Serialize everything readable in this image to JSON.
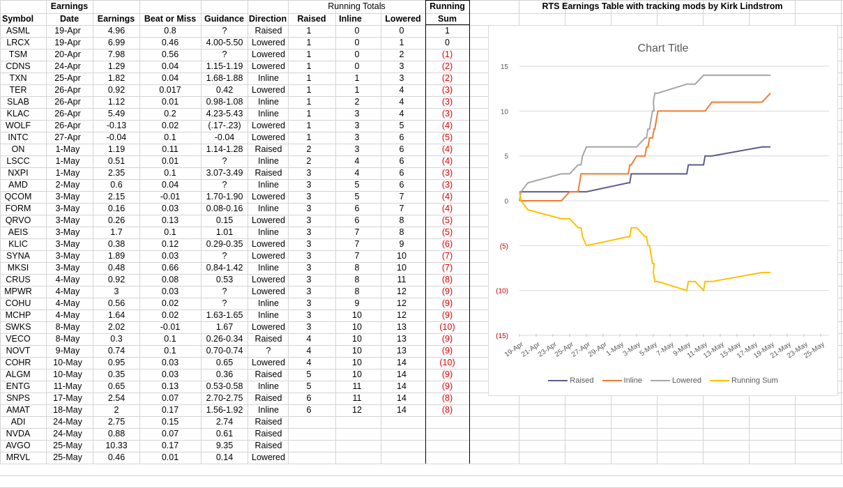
{
  "sheet_title": "RTS Earnings Table with tracking mods by Kirk Lindstrom",
  "headers": {
    "row1": {
      "earnings": "Earnings",
      "running_totals": "Running Totals",
      "running": "Running"
    },
    "row2": {
      "symbol": "Symbol",
      "date": "Date",
      "earnings": "Earnings",
      "beat": "Beat or Miss",
      "guidance": "Guidance",
      "direction": "Direction",
      "raised": "Raised",
      "inline": "Inline",
      "lowered": "Lowered",
      "sum": "Sum"
    }
  },
  "rows": [
    [
      "ASML",
      "19-Apr",
      "4.96",
      "0.8",
      "?",
      "Raised",
      "1",
      "0",
      "0",
      "1"
    ],
    [
      "LRCX",
      "19-Apr",
      "6.99",
      "0.46",
      "4.00-5.50",
      "Lowered",
      "1",
      "0",
      "1",
      "0"
    ],
    [
      "TSM",
      "20-Apr",
      "7.98",
      "0.56",
      "?",
      "Lowered",
      "1",
      "0",
      "2",
      "(1)"
    ],
    [
      "CDNS",
      "24-Apr",
      "1.29",
      "0.04",
      "1.15-1.19",
      "Lowered",
      "1",
      "0",
      "3",
      "(2)"
    ],
    [
      "TXN",
      "25-Apr",
      "1.82",
      "0.04",
      "1.68-1.88",
      "Inline",
      "1",
      "1",
      "3",
      "(2)"
    ],
    [
      "TER",
      "26-Apr",
      "0.92",
      "0.017",
      "0.42",
      "Lowered",
      "1",
      "1",
      "4",
      "(3)"
    ],
    [
      "SLAB",
      "26-Apr",
      "1.12",
      "0.01",
      "0.98-1.08",
      "Inline",
      "1",
      "2",
      "4",
      "(3)"
    ],
    [
      "KLAC",
      "26-Apr",
      "5.49",
      "0.2",
      "4.23-5.43",
      "Inline",
      "1",
      "3",
      "4",
      "(3)"
    ],
    [
      "WOLF",
      "26-Apr",
      "-0.13",
      "0.02",
      "(.17-.23)",
      "Lowered",
      "1",
      "3",
      "5",
      "(4)"
    ],
    [
      "INTC",
      "27-Apr",
      "-0.04",
      "0.1",
      "-0.04",
      "Lowered",
      "1",
      "3",
      "6",
      "(5)"
    ],
    [
      "ON",
      "1-May",
      "1.19",
      "0.11",
      "1.14-1.28",
      "Raised",
      "2",
      "3",
      "6",
      "(4)"
    ],
    [
      "LSCC",
      "1-May",
      "0.51",
      "0.01",
      "?",
      "Inline",
      "2",
      "4",
      "6",
      "(4)"
    ],
    [
      "NXPI",
      "1-May",
      "2.35",
      "0.1",
      "3.07-3.49",
      "Raised",
      "3",
      "4",
      "6",
      "(3)"
    ],
    [
      "AMD",
      "2-May",
      "0.6",
      "0.04",
      "?",
      "Inline",
      "3",
      "5",
      "6",
      "(3)"
    ],
    [
      "QCOM",
      "3-May",
      "2.15",
      "-0.01",
      "1.70-1.90",
      "Lowered",
      "3",
      "5",
      "7",
      "(4)"
    ],
    [
      "FORM",
      "3-May",
      "0.16",
      "0.03",
      "0.08-0.16",
      "Inline",
      "3",
      "6",
      "7",
      "(4)"
    ],
    [
      "QRVO",
      "3-May",
      "0.26",
      "0.13",
      "0.15",
      "Lowered",
      "3",
      "6",
      "8",
      "(5)"
    ],
    [
      "AEIS",
      "3-May",
      "1.7",
      "0.1",
      "1.01",
      "Inline",
      "3",
      "7",
      "8",
      "(5)"
    ],
    [
      "KLIC",
      "3-May",
      "0.38",
      "0.12",
      "0.29-0.35",
      "Lowered",
      "3",
      "7",
      "9",
      "(6)"
    ],
    [
      "SYNA",
      "3-May",
      "1.89",
      "0.03",
      "?",
      "Lowered",
      "3",
      "7",
      "10",
      "(7)"
    ],
    [
      "MKSI",
      "3-May",
      "0.48",
      "0.66",
      "0.84-1.42",
      "Inline",
      "3",
      "8",
      "10",
      "(7)"
    ],
    [
      "CRUS",
      "4-May",
      "0.92",
      "0.08",
      "0.53",
      "Lowered",
      "3",
      "8",
      "11",
      "(8)"
    ],
    [
      "MPWR",
      "4-May",
      "3",
      "0.03",
      "?",
      "Lowered",
      "3",
      "8",
      "12",
      "(9)"
    ],
    [
      "COHU",
      "4-May",
      "0.56",
      "0.02",
      "?",
      "Inline",
      "3",
      "9",
      "12",
      "(9)"
    ],
    [
      "MCHP",
      "4-May",
      "1.64",
      "0.02",
      "1.63-1.65",
      "Inline",
      "3",
      "10",
      "12",
      "(9)"
    ],
    [
      "SWKS",
      "8-May",
      "2.02",
      "-0.01",
      "1.67",
      "Lowered",
      "3",
      "10",
      "13",
      "(10)"
    ],
    [
      "VECO",
      "8-May",
      "0.3",
      "0.1",
      "0.26-0.34",
      "Raised",
      "4",
      "10",
      "13",
      "(9)"
    ],
    [
      "NOVT",
      "9-May",
      "0.74",
      "0.1",
      "0.70-0.74",
      "?",
      "4",
      "10",
      "13",
      "(9)"
    ],
    [
      "COHR",
      "10-May",
      "0.95",
      "0.03",
      "0.65",
      "Lowered",
      "4",
      "10",
      "14",
      "(10)"
    ],
    [
      "ALGM",
      "10-May",
      "0.35",
      "0.03",
      "0.36",
      "Raised",
      "5",
      "10",
      "14",
      "(9)"
    ],
    [
      "ENTG",
      "11-May",
      "0.65",
      "0.13",
      "0.53-0.58",
      "Inline",
      "5",
      "11",
      "14",
      "(9)"
    ],
    [
      "SNPS",
      "17-May",
      "2.54",
      "0.07",
      "2.70-2.75",
      "Raised",
      "6",
      "11",
      "14",
      "(8)"
    ],
    [
      "AMAT",
      "18-May",
      "2",
      "0.17",
      "1.56-1.92",
      "Inline",
      "6",
      "12",
      "14",
      "(8)"
    ],
    [
      "ADI",
      "24-May",
      "2.75",
      "0.15",
      "2.74",
      "Raised",
      "",
      "",
      "",
      ""
    ],
    [
      "NVDA",
      "24-May",
      "0.88",
      "0.07",
      "0.61",
      "Raised",
      "",
      "",
      "",
      ""
    ],
    [
      "AVGO",
      "25-May",
      "10.33",
      "0.17",
      "9.35",
      "Raised",
      "",
      "",
      "",
      ""
    ],
    [
      "MRVL",
      "25-May",
      "0.46",
      "0.01",
      "0.14",
      "Lowered",
      "",
      "",
      "",
      ""
    ]
  ],
  "chart_data": {
    "type": "line",
    "title": "Chart Title",
    "x": [
      "19-Apr",
      "19-Apr",
      "20-Apr",
      "24-Apr",
      "25-Apr",
      "26-Apr",
      "26-Apr",
      "26-Apr",
      "26-Apr",
      "27-Apr",
      "1-May",
      "1-May",
      "1-May",
      "2-May",
      "3-May",
      "3-May",
      "3-May",
      "3-May",
      "3-May",
      "3-May",
      "3-May",
      "4-May",
      "4-May",
      "4-May",
      "4-May",
      "8-May",
      "8-May",
      "9-May",
      "10-May",
      "10-May",
      "11-May",
      "17-May",
      "18-May"
    ],
    "x_tick_labels": [
      "19-Apr",
      "21-Apr",
      "23-Apr",
      "25-Apr",
      "27-Apr",
      "29-Apr",
      "1-May",
      "3-May",
      "5-May",
      "7-May",
      "9-May",
      "11-May",
      "13-May",
      "15-May",
      "17-May",
      "19-May",
      "21-May",
      "23-May",
      "25-May"
    ],
    "ylim": [
      -15,
      15
    ],
    "y_tick_labels": [
      "15",
      "10",
      "5",
      "0",
      "(5)",
      "(10)",
      "(15)"
    ],
    "series": [
      {
        "name": "Raised",
        "color": "#5b5a8f",
        "values": [
          1,
          1,
          1,
          1,
          1,
          1,
          1,
          1,
          1,
          1,
          2,
          2,
          3,
          3,
          3,
          3,
          3,
          3,
          3,
          3,
          3,
          3,
          3,
          3,
          3,
          3,
          4,
          4,
          4,
          5,
          5,
          6,
          6
        ]
      },
      {
        "name": "Inline",
        "color": "#ed7d31",
        "values": [
          0,
          0,
          0,
          0,
          1,
          1,
          2,
          3,
          3,
          3,
          3,
          4,
          4,
          5,
          5,
          6,
          6,
          7,
          7,
          7,
          8,
          8,
          8,
          9,
          10,
          10,
          10,
          10,
          10,
          10,
          11,
          11,
          12
        ]
      },
      {
        "name": "Lowered",
        "color": "#a5a5a5",
        "values": [
          0,
          1,
          2,
          3,
          3,
          4,
          4,
          4,
          5,
          6,
          6,
          6,
          6,
          6,
          7,
          7,
          8,
          8,
          9,
          10,
          10,
          11,
          12,
          12,
          12,
          13,
          13,
          13,
          14,
          14,
          14,
          14,
          14
        ]
      },
      {
        "name": "Running Sum",
        "color": "#ffc000",
        "values": [
          1,
          0,
          -1,
          -2,
          -2,
          -3,
          -3,
          -3,
          -4,
          -5,
          -4,
          -4,
          -3,
          -3,
          -4,
          -4,
          -5,
          -5,
          -6,
          -7,
          -7,
          -8,
          -9,
          -9,
          -9,
          -10,
          -9,
          -9,
          -10,
          -9,
          -9,
          -8,
          -8
        ]
      }
    ],
    "legend_position": "bottom",
    "grid": true
  }
}
